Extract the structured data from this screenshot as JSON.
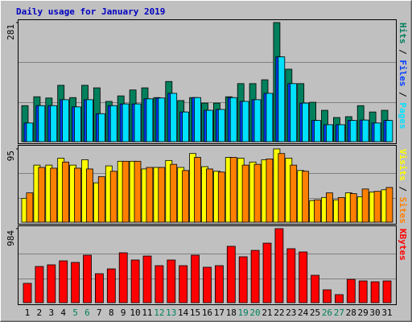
{
  "title": "Daily usage for January 2019",
  "separator": "/",
  "chart_data": [
    {
      "type": "bar",
      "ylim": [
        0,
        281
      ],
      "yticks": [
        281
      ],
      "categories": [
        "1",
        "2",
        "3",
        "4",
        "5",
        "6",
        "7",
        "8",
        "9",
        "10",
        "11",
        "12",
        "13",
        "14",
        "15",
        "16",
        "17",
        "18",
        "19",
        "20",
        "21",
        "22",
        "23",
        "24",
        "25",
        "26",
        "27",
        "28",
        "29",
        "30",
        "31"
      ],
      "series": [
        {
          "name": "Hits",
          "color": "#00805c",
          "values": [
            85,
            106,
            103,
            133,
            104,
            133,
            127,
            95,
            108,
            122,
            127,
            104,
            142,
            97,
            104,
            91,
            91,
            106,
            137,
            137,
            146,
            281,
            171,
            137,
            93,
            74,
            57,
            59,
            85,
            70,
            74
          ]
        },
        {
          "name": "Files",
          "color": "#0040ff",
          "values": [
            44,
            85,
            85,
            99,
            82,
            99,
            66,
            85,
            89,
            89,
            101,
            103,
            114,
            70,
            104,
            74,
            76,
            104,
            95,
            99,
            114,
            200,
            137,
            91,
            50,
            40,
            40,
            50,
            51,
            44,
            50
          ]
        },
        {
          "name": "Pages",
          "color": "#00e0ff",
          "values": [
            44,
            85,
            85,
            99,
            82,
            99,
            66,
            85,
            89,
            89,
            101,
            103,
            114,
            70,
            104,
            74,
            76,
            104,
            95,
            99,
            114,
            200,
            137,
            91,
            50,
            40,
            40,
            50,
            51,
            44,
            50
          ]
        }
      ]
    },
    {
      "type": "bar",
      "ylim": [
        0,
        95
      ],
      "yticks": [
        95
      ],
      "categories": [
        "1",
        "2",
        "3",
        "4",
        "5",
        "6",
        "7",
        "8",
        "9",
        "10",
        "11",
        "12",
        "13",
        "14",
        "15",
        "16",
        "17",
        "18",
        "19",
        "20",
        "21",
        "22",
        "23",
        "24",
        "25",
        "26",
        "27",
        "28",
        "29",
        "30",
        "31"
      ],
      "series": [
        {
          "name": "Visits",
          "color": "#ffff00",
          "values": [
            31,
            74,
            74,
            83,
            74,
            81,
            51,
            73,
            79,
            79,
            69,
            71,
            80,
            71,
            89,
            72,
            66,
            84,
            83,
            78,
            81,
            95,
            83,
            67,
            28,
            32,
            29,
            38,
            33,
            39,
            42
          ]
        },
        {
          "name": "Sites",
          "color": "#ff8000",
          "values": [
            38,
            71,
            70,
            78,
            70,
            69,
            59,
            66,
            79,
            79,
            71,
            71,
            75,
            67,
            84,
            69,
            65,
            84,
            74,
            75,
            82,
            89,
            74,
            66,
            29,
            38,
            32,
            37,
            43,
            40,
            45
          ]
        }
      ]
    },
    {
      "type": "bar",
      "ylim": [
        0,
        984
      ],
      "yticks": [
        984
      ],
      "categories": [
        "1",
        "2",
        "3",
        "4",
        "5",
        "6",
        "7",
        "8",
        "9",
        "10",
        "11",
        "12",
        "13",
        "14",
        "15",
        "16",
        "17",
        "18",
        "19",
        "20",
        "21",
        "22",
        "23",
        "24",
        "25",
        "26",
        "27",
        "28",
        "29",
        "30",
        "31"
      ],
      "label_colors": [
        "#000000",
        "#000000",
        "#000000",
        "#000000",
        "#00805c",
        "#00805c",
        "#000000",
        "#000000",
        "#000000",
        "#000000",
        "#000000",
        "#00805c",
        "#00805c",
        "#000000",
        "#000000",
        "#000000",
        "#000000",
        "#000000",
        "#00805c",
        "#00805c",
        "#000000",
        "#000000",
        "#000000",
        "#000000",
        "#000000",
        "#00805c",
        "#00805c",
        "#000000",
        "#000000",
        "#000000",
        "#000000"
      ],
      "series": [
        {
          "name": "KBytes",
          "color": "#ff0000",
          "values": [
            257,
            481,
            503,
            556,
            535,
            631,
            385,
            449,
            663,
            567,
            620,
            492,
            567,
            492,
            631,
            471,
            492,
            749,
            610,
            695,
            791,
            984,
            717,
            674,
            364,
            171,
            107,
            310,
            289,
            278,
            289
          ]
        }
      ]
    }
  ]
}
